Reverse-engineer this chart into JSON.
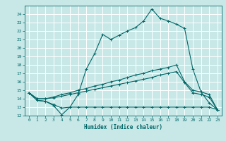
{
  "xlabel": "Humidex (Indice chaleur)",
  "bg_color": "#c8e8e8",
  "grid_color": "#ffffff",
  "line_color": "#006666",
  "xlim": [
    -0.5,
    23.5
  ],
  "ylim": [
    12,
    25
  ],
  "xticks": [
    0,
    1,
    2,
    3,
    4,
    5,
    6,
    7,
    8,
    9,
    10,
    11,
    12,
    13,
    14,
    15,
    16,
    17,
    18,
    19,
    20,
    21,
    22,
    23
  ],
  "yticks": [
    12,
    13,
    14,
    15,
    16,
    17,
    18,
    19,
    20,
    21,
    22,
    23,
    24
  ],
  "series": [
    [
      14.7,
      13.8,
      13.7,
      13.2,
      12.1,
      13.0,
      14.5,
      17.5,
      19.3,
      21.6,
      21.0,
      21.5,
      22.0,
      22.4,
      23.2,
      24.6,
      23.5,
      23.2,
      22.8,
      22.3,
      17.5,
      14.8,
      13.5,
      12.7
    ],
    [
      14.7,
      13.8,
      13.7,
      13.3,
      12.9,
      13.0,
      13.0,
      13.0,
      13.0,
      13.0,
      13.0,
      13.0,
      13.0,
      13.0,
      13.0,
      13.0,
      13.0,
      13.0,
      13.0,
      13.0,
      13.0,
      13.0,
      13.0,
      12.7
    ],
    [
      14.7,
      14.0,
      14.0,
      14.1,
      14.3,
      14.5,
      14.7,
      14.9,
      15.1,
      15.3,
      15.5,
      15.7,
      15.9,
      16.1,
      16.3,
      16.5,
      16.8,
      17.0,
      17.2,
      15.9,
      14.7,
      14.5,
      14.2,
      12.7
    ],
    [
      14.7,
      14.0,
      14.0,
      14.2,
      14.5,
      14.7,
      15.0,
      15.2,
      15.5,
      15.7,
      16.0,
      16.2,
      16.5,
      16.8,
      17.0,
      17.3,
      17.5,
      17.7,
      18.0,
      16.0,
      15.0,
      14.8,
      14.5,
      12.7
    ]
  ]
}
